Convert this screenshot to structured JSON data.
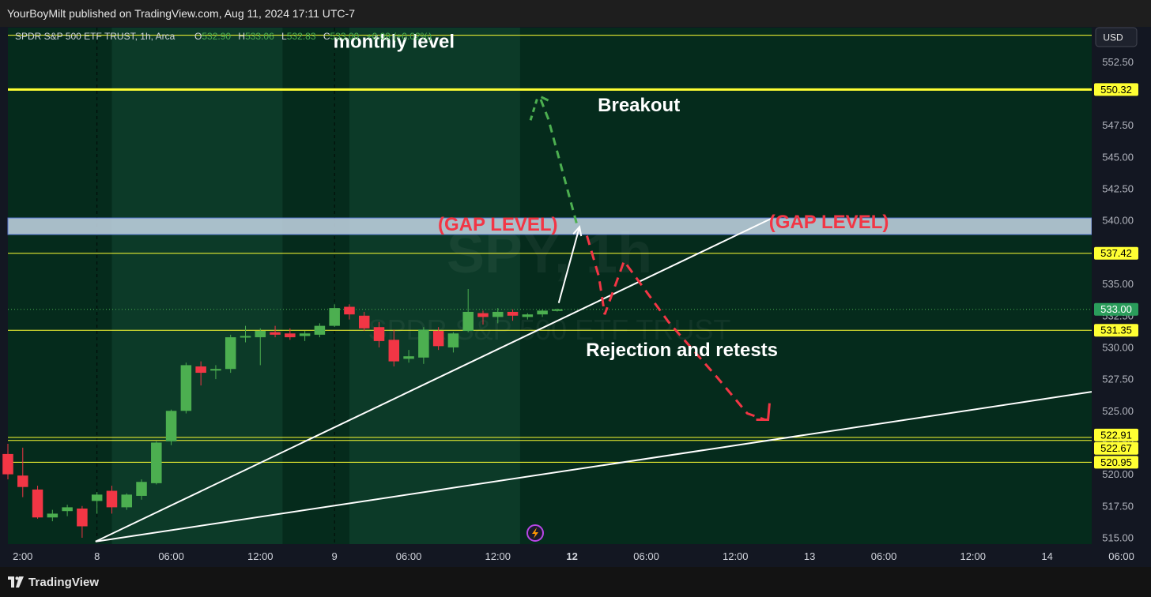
{
  "publish_line": "YourBoyMilt published on TradingView.com, Aug 11, 2024 17:11 UTC-7",
  "brand": "TradingView",
  "legend": {
    "symbol": "SPDR S&P 500 ETF TRUST, 1h, Arca",
    "o_label": "O",
    "o_value": "532.90",
    "h_label": "H",
    "h_value": "533.06",
    "l_label": "L",
    "l_value": "532.83",
    "c_label": "C",
    "c_value": "533.00",
    "change": "+0.09 (+0.02%)"
  },
  "currency": "USD",
  "watermark": {
    "line1": "SPY, 1h",
    "line2": "SPDR S&P 500 ETF TRUST"
  },
  "colors": {
    "bg": "#052b1c",
    "up": "#4caf50",
    "down": "#f23645",
    "level": "#ffff33",
    "gap_zone": "#c5d7e6",
    "gap_text": "#f23645",
    "annotation": "#ffffff",
    "last_price": "#2a9d5b"
  },
  "chart_data": {
    "type": "candlestick",
    "title": "SPDR S&P 500 ETF TRUST, 1h, Arca",
    "x_start_index": -3,
    "x_end_index": 70,
    "ylim": [
      514.5,
      555.2
    ],
    "y_ticks": [
      515,
      517.5,
      520,
      522.5,
      525,
      527.5,
      530,
      532.5,
      535,
      540,
      542.5,
      545,
      547.5,
      552.5
    ],
    "y_tick_labels": [
      "515.00",
      "517.50",
      "520.00",
      "522.50",
      "525.00",
      "527.50",
      "530.00",
      "532.50",
      "535.00",
      "540.00",
      "542.50",
      "545.00",
      "547.50",
      "552.50"
    ],
    "x_tick_labels": [
      {
        "i": -2,
        "label": "2:00"
      },
      {
        "i": 3,
        "label": "8"
      },
      {
        "i": 8,
        "label": "06:00"
      },
      {
        "i": 14,
        "label": "12:00"
      },
      {
        "i": 19,
        "label": "9"
      },
      {
        "i": 24,
        "label": "06:00"
      },
      {
        "i": 30,
        "label": "12:00"
      },
      {
        "i": 35,
        "label": "12",
        "bold": true
      },
      {
        "i": 40,
        "label": "06:00"
      },
      {
        "i": 46,
        "label": "12:00"
      },
      {
        "i": 51,
        "label": "13"
      },
      {
        "i": 56,
        "label": "06:00"
      },
      {
        "i": 62,
        "label": "12:00"
      },
      {
        "i": 67,
        "label": "14"
      },
      {
        "i": 72,
        "label": "06:00"
      }
    ],
    "day_separators": [
      3,
      19
    ],
    "session_bands": [
      [
        4,
        15.5
      ],
      [
        20,
        31.5
      ]
    ],
    "candles": [
      {
        "i": -3,
        "o": 521.6,
        "h": 522.4,
        "l": 519.6,
        "c": 520.0
      },
      {
        "i": -2,
        "o": 519.9,
        "h": 522.1,
        "l": 518.2,
        "c": 519.0
      },
      {
        "i": -1,
        "o": 518.8,
        "h": 519.1,
        "l": 516.5,
        "c": 516.6
      },
      {
        "i": 0,
        "o": 516.6,
        "h": 517.2,
        "l": 516.3,
        "c": 516.9
      },
      {
        "i": 1,
        "o": 517.1,
        "h": 517.6,
        "l": 516.7,
        "c": 517.4
      },
      {
        "i": 2,
        "o": 517.3,
        "h": 517.5,
        "l": 515.0,
        "c": 515.9
      },
      {
        "i": 3,
        "o": 517.9,
        "h": 518.6,
        "l": 516.9,
        "c": 518.4
      },
      {
        "i": 4,
        "o": 518.7,
        "h": 519.1,
        "l": 516.9,
        "c": 517.4
      },
      {
        "i": 5,
        "o": 517.4,
        "h": 518.5,
        "l": 517.2,
        "c": 518.4
      },
      {
        "i": 6,
        "o": 518.3,
        "h": 519.6,
        "l": 518.0,
        "c": 519.4
      },
      {
        "i": 7,
        "o": 519.3,
        "h": 522.6,
        "l": 519.2,
        "c": 522.5
      },
      {
        "i": 8,
        "o": 522.6,
        "h": 525.1,
        "l": 522.3,
        "c": 525.0
      },
      {
        "i": 9,
        "o": 525.0,
        "h": 528.8,
        "l": 524.8,
        "c": 528.6
      },
      {
        "i": 10,
        "o": 528.5,
        "h": 528.9,
        "l": 527.0,
        "c": 528.0
      },
      {
        "i": 11,
        "o": 528.2,
        "h": 528.6,
        "l": 527.5,
        "c": 528.3
      },
      {
        "i": 12,
        "o": 528.3,
        "h": 531.0,
        "l": 528.0,
        "c": 530.8
      },
      {
        "i": 13,
        "o": 530.8,
        "h": 531.7,
        "l": 530.4,
        "c": 530.9
      },
      {
        "i": 14,
        "o": 530.8,
        "h": 531.5,
        "l": 528.6,
        "c": 531.3
      },
      {
        "i": 15,
        "o": 531.2,
        "h": 531.7,
        "l": 530.8,
        "c": 531.0
      },
      {
        "i": 16,
        "o": 531.1,
        "h": 531.5,
        "l": 530.6,
        "c": 530.8
      },
      {
        "i": 17,
        "o": 530.9,
        "h": 531.3,
        "l": 530.5,
        "c": 531.1
      },
      {
        "i": 18,
        "o": 531.0,
        "h": 531.9,
        "l": 530.8,
        "c": 531.7
      },
      {
        "i": 19,
        "o": 531.7,
        "h": 533.4,
        "l": 531.6,
        "c": 533.1
      },
      {
        "i": 20,
        "o": 533.2,
        "h": 533.4,
        "l": 532.2,
        "c": 532.6
      },
      {
        "i": 21,
        "o": 532.5,
        "h": 532.8,
        "l": 531.3,
        "c": 531.5
      },
      {
        "i": 22,
        "o": 531.6,
        "h": 532.0,
        "l": 530.0,
        "c": 530.5
      },
      {
        "i": 23,
        "o": 530.6,
        "h": 531.4,
        "l": 528.5,
        "c": 528.9
      },
      {
        "i": 24,
        "o": 529.1,
        "h": 529.8,
        "l": 528.8,
        "c": 529.3
      },
      {
        "i": 25,
        "o": 529.2,
        "h": 531.6,
        "l": 528.7,
        "c": 531.4
      },
      {
        "i": 26,
        "o": 531.3,
        "h": 531.6,
        "l": 529.8,
        "c": 530.1
      },
      {
        "i": 27,
        "o": 530.0,
        "h": 531.2,
        "l": 529.6,
        "c": 531.1
      },
      {
        "i": 28,
        "o": 531.3,
        "h": 534.6,
        "l": 531.2,
        "c": 532.8
      },
      {
        "i": 29,
        "o": 532.7,
        "h": 532.9,
        "l": 531.8,
        "c": 532.4
      },
      {
        "i": 30,
        "o": 532.4,
        "h": 533.1,
        "l": 531.9,
        "c": 532.8
      },
      {
        "i": 31,
        "o": 532.8,
        "h": 533.0,
        "l": 532.1,
        "c": 532.5
      },
      {
        "i": 32,
        "o": 532.4,
        "h": 532.7,
        "l": 532.2,
        "c": 532.6
      },
      {
        "i": 33,
        "o": 532.6,
        "h": 533.0,
        "l": 532.4,
        "c": 532.9
      },
      {
        "i": 34,
        "o": 532.9,
        "h": 533.06,
        "l": 532.83,
        "c": 533.0
      }
    ],
    "levels": [
      {
        "price": 554.6,
        "tag": ""
      },
      {
        "price": 550.32,
        "tag": "550.32",
        "bold": true
      },
      {
        "price": 537.42,
        "tag": "537.42"
      },
      {
        "price": 531.35,
        "tag": "531.35"
      },
      {
        "price": 522.91,
        "tag": "522.91"
      },
      {
        "price": 522.67,
        "tag": "522.67"
      },
      {
        "price": 520.95,
        "tag": "520.95"
      }
    ],
    "gap_zone": [
      538.9,
      540.2
    ],
    "last_price": {
      "price": 533.0,
      "tag": "533.00"
    },
    "trendlines": [
      {
        "x1": 2.9,
        "y1": 514.7,
        "x2": 48.5,
        "y2": 540.2
      },
      {
        "x1": 2.9,
        "y1": 514.7,
        "x2": 70,
        "y2": 526.5
      }
    ],
    "white_arrow": {
      "x1": 34.1,
      "y1": 533.5,
      "x2": 35.5,
      "y2": 539.5
    },
    "green_path": [
      [
        35.3,
        539.8
      ],
      [
        33.4,
        548.0
      ],
      [
        32.8,
        549.8
      ],
      [
        33.7,
        549.3
      ]
    ],
    "green_tick": [
      [
        32.2,
        547.9
      ],
      [
        32.7,
        549.8
      ]
    ],
    "red_path": [
      [
        36.0,
        538.8
      ],
      [
        36.8,
        535.6
      ],
      [
        37.2,
        532.6
      ],
      [
        38.5,
        536.8
      ],
      [
        41.5,
        532.0
      ],
      [
        44.8,
        527.6
      ],
      [
        46.8,
        524.8
      ],
      [
        48.0,
        524.3
      ]
    ],
    "red_tick": [
      [
        47.4,
        524.3
      ],
      [
        48.2,
        524.3
      ],
      [
        48.3,
        525.6
      ]
    ],
    "annotations": [
      {
        "text": "monthly level",
        "x": 23.0,
        "y": 553.6,
        "color": "#ffffff"
      },
      {
        "text": "Breakout",
        "x": 39.5,
        "y": 548.6,
        "color": "#ffffff"
      },
      {
        "text": "(GAP LEVEL)",
        "x": 30.0,
        "y": 539.2,
        "color": "#f23645"
      },
      {
        "text": "(GAP LEVEL)",
        "x": 52.3,
        "y": 539.4,
        "color": "#f23645"
      },
      {
        "text": "Rejection and retests",
        "x": 42.4,
        "y": 529.3,
        "color": "#ffffff"
      }
    ]
  }
}
